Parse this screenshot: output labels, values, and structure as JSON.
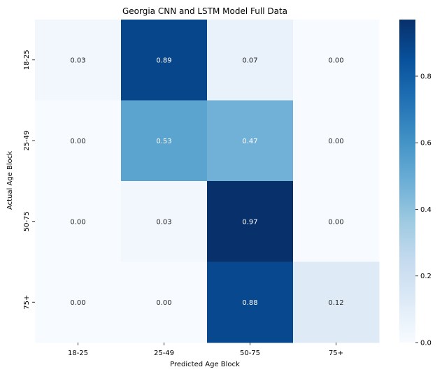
{
  "chart_data": {
    "type": "heatmap",
    "title": "Georgia CNN and LSTM Model Full Data",
    "xlabel": "Predicted Age Block",
    "ylabel": "Actual Age Block",
    "x_categories": [
      "18-25",
      "25-49",
      "50-75",
      "75+"
    ],
    "y_categories": [
      "18-25",
      "25-49",
      "50-75",
      "75+"
    ],
    "values": [
      [
        0.03,
        0.89,
        0.07,
        0.0
      ],
      [
        0.0,
        0.53,
        0.47,
        0.0
      ],
      [
        0.0,
        0.03,
        0.97,
        0.0
      ],
      [
        0.0,
        0.0,
        0.88,
        0.12
      ]
    ],
    "value_labels": [
      [
        "0.03",
        "0.89",
        "0.07",
        "0.00"
      ],
      [
        "0.00",
        "0.53",
        "0.47",
        "0.00"
      ],
      [
        "0.00",
        "0.03",
        "0.97",
        "0.00"
      ],
      [
        "0.00",
        "0.00",
        "0.88",
        "0.12"
      ]
    ],
    "colormap": "Blues",
    "colorbar": {
      "range": [
        0,
        0.97
      ],
      "ticks": [
        0.0,
        0.2,
        0.4,
        0.6,
        0.8
      ],
      "tick_labels": [
        "0.0",
        "0.2",
        "0.4",
        "0.6",
        "0.8"
      ]
    },
    "grid": false
  }
}
